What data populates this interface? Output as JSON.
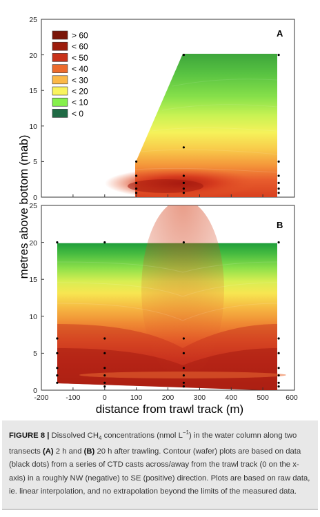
{
  "chart_data": [
    {
      "type": "contour",
      "panel_label": "A",
      "x_range": [
        -200,
        600
      ],
      "y_range": [
        0,
        25
      ],
      "x_ticks": [],
      "y_ticks": [
        "0",
        "5",
        "10",
        "15",
        "20",
        "25"
      ],
      "legend": {
        "entries": [
          {
            "label": "> 60",
            "color": "#7a1508"
          },
          {
            "label": "< 60",
            "color": "#9c1c0c"
          },
          {
            "label": "< 50",
            "color": "#c8321a"
          },
          {
            "label": "< 40",
            "color": "#ec6a2c"
          },
          {
            "label": "< 30",
            "color": "#fbb848"
          },
          {
            "label": "< 20",
            "color": "#f9f35e"
          },
          {
            "label": "< 10",
            "color": "#86f04c"
          },
          {
            "label": "< 0",
            "color": "#2f9c38"
          }
        ],
        "extra": {
          "label": "< 0",
          "color": "#1f6a45"
        }
      },
      "data_points": [
        {
          "x": 100,
          "y": 0.6
        },
        {
          "x": 100,
          "y": 1.2
        },
        {
          "x": 100,
          "y": 2
        },
        {
          "x": 100,
          "y": 3
        },
        {
          "x": 100,
          "y": 5
        },
        {
          "x": 250,
          "y": 0.6
        },
        {
          "x": 250,
          "y": 1.2
        },
        {
          "x": 250,
          "y": 2
        },
        {
          "x": 250,
          "y": 3
        },
        {
          "x": 250,
          "y": 7
        },
        {
          "x": 250,
          "y": 20
        },
        {
          "x": 550,
          "y": 0.6
        },
        {
          "x": 550,
          "y": 1.2
        },
        {
          "x": 550,
          "y": 2
        },
        {
          "x": 550,
          "y": 3
        },
        {
          "x": 550,
          "y": 5
        },
        {
          "x": 550,
          "y": 20
        }
      ]
    },
    {
      "type": "contour",
      "panel_label": "B",
      "x_range": [
        -200,
        600
      ],
      "y_range": [
        0,
        25
      ],
      "x_ticks": [
        "-200",
        "-100",
        "0",
        "100",
        "200",
        "300",
        "400",
        "500",
        "600"
      ],
      "y_ticks": [
        "0",
        "5",
        "10",
        "15",
        "20",
        "25"
      ],
      "data_points": [
        {
          "x": -150,
          "y": 1
        },
        {
          "x": -150,
          "y": 2
        },
        {
          "x": -150,
          "y": 3
        },
        {
          "x": -150,
          "y": 5
        },
        {
          "x": -150,
          "y": 7
        },
        {
          "x": -150,
          "y": 20
        },
        {
          "x": 0,
          "y": 0.5
        },
        {
          "x": 0,
          "y": 1
        },
        {
          "x": 0,
          "y": 2
        },
        {
          "x": 0,
          "y": 3
        },
        {
          "x": 0,
          "y": 5
        },
        {
          "x": 0,
          "y": 7
        },
        {
          "x": 0,
          "y": 20
        },
        {
          "x": 250,
          "y": 0.5
        },
        {
          "x": 250,
          "y": 1
        },
        {
          "x": 250,
          "y": 2
        },
        {
          "x": 250,
          "y": 3
        },
        {
          "x": 250,
          "y": 5
        },
        {
          "x": 250,
          "y": 7
        },
        {
          "x": 250,
          "y": 20
        },
        {
          "x": 550,
          "y": 0.5
        },
        {
          "x": 550,
          "y": 1
        },
        {
          "x": 550,
          "y": 2
        },
        {
          "x": 550,
          "y": 3
        },
        {
          "x": 550,
          "y": 5
        },
        {
          "x": 550,
          "y": 7
        },
        {
          "x": 550,
          "y": 20
        }
      ]
    }
  ],
  "ylabel": "metres above bottom (mab)",
  "xlabel": "distance from trawl track (m)",
  "caption": {
    "figure_label": "FIGURE 8 |",
    "text_1": " Dissolved CH",
    "sub_4": "4",
    "text_2": " concentrations (nmol L",
    "sup": "−1",
    "text_3": ") in the water column along two transects ",
    "bold_A": "(A)",
    "text_4": " 2 h and ",
    "bold_B": "(B)",
    "text_5": " 20 h after trawling. Contour (wafer) plots are based on data (black dots) from a series of CTD casts across/away from the trawl track (0 on the x-axis) in a roughly NW (negative) to SE (positive) direction. Plots are based on raw data, ie. linear interpolation, and no extrapolation beyond the limits of the measured data."
  }
}
